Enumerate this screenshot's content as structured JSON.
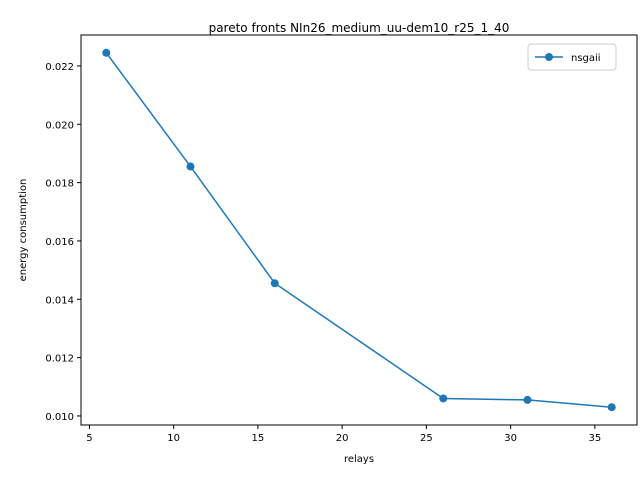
{
  "chart_data": {
    "type": "line",
    "title": "pareto fronts NIn26_medium_uu-dem10_r25_1_40",
    "xlabel": "relays",
    "ylabel": "energy consumption",
    "xlim": [
      4.5,
      37.5
    ],
    "ylim": [
      0.00969,
      0.02306
    ],
    "xticks": [
      5,
      10,
      15,
      20,
      25,
      30,
      35
    ],
    "xtick_labels": [
      "5",
      "10",
      "15",
      "20",
      "25",
      "30",
      "35"
    ],
    "yticks": [
      0.01,
      0.012,
      0.014,
      0.016,
      0.018,
      0.02,
      0.022
    ],
    "ytick_labels": [
      "0.010",
      "0.012",
      "0.014",
      "0.016",
      "0.018",
      "0.020",
      "0.022"
    ],
    "grid": false,
    "legend_position": "top-right",
    "series": [
      {
        "name": "nsgaii",
        "color": "#1f77b4",
        "marker": "circle",
        "x": [
          6,
          11,
          16,
          26,
          31,
          36
        ],
        "y": [
          0.02245,
          0.01855,
          0.01455,
          0.0106,
          0.01055,
          0.0103
        ]
      }
    ]
  }
}
